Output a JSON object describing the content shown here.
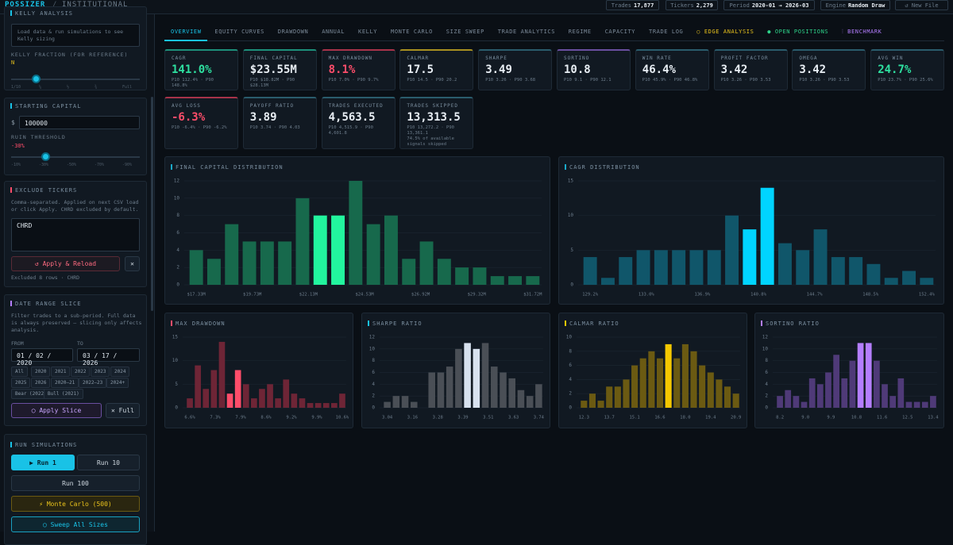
{
  "header": {
    "brand": "POSSIZER",
    "sep": "/",
    "mode": "INSTITUTIONAL",
    "stats": [
      {
        "label": "Trades",
        "value": "17,877"
      },
      {
        "label": "Tickers",
        "value": "2,279"
      },
      {
        "label": "Period",
        "value": "2020-01 → 2026-03"
      },
      {
        "label": "Engine",
        "value": "Random Draw"
      }
    ],
    "new_file": "↺ New File"
  },
  "sidebar": {
    "kelly": {
      "title": "KELLY ANALYSIS",
      "note": "Load data & run simulations to see Kelly sizing",
      "fraction_label": "KELLY FRACTION (FOR REFERENCE)",
      "fraction_value": "N",
      "ticks": [
        "1/10",
        "¼",
        "½",
        "¾",
        "Full"
      ]
    },
    "capital": {
      "title": "STARTING CAPITAL",
      "currency": "$",
      "value": "100000",
      "ruin_label": "RUIN THRESHOLD",
      "ruin_value": "-30%",
      "ticks": [
        "-10%",
        "-30%",
        "-50%",
        "-70%",
        "-90%"
      ]
    },
    "exclude": {
      "title": "EXCLUDE TICKERS",
      "note": "Comma-separated. Applied on next CSV load or click Apply. CHRD excluded by default.",
      "text": "CHRD",
      "apply": "↺ Apply & Reload",
      "clear": "✕",
      "status": "Excluded 8 rows · CHRD"
    },
    "date": {
      "title": "DATE RANGE SLICE",
      "note": "Filter trades to a sub-period. Full data is always preserved — slicing only affects analysis.",
      "from_label": "FROM",
      "to_label": "TO",
      "from": "01 / 02 / 2020",
      "to": "03 / 17 / 2026",
      "chips": [
        "All",
        "2020",
        "2021",
        "2022",
        "2023",
        "2024",
        "2025",
        "2026",
        "2020–21",
        "2022–23",
        "2024+",
        "Bear (2022)",
        "Bull (2021)"
      ],
      "apply": "◯ Apply Slice",
      "full": "✕ Full"
    },
    "run": {
      "title": "RUN SIMULATIONS",
      "run1": "▶ Run 1",
      "run10": "Run 10",
      "run100": "Run 100",
      "mc": "⚡ Monte Carlo (500)",
      "sweep": "◯ Sweep All Sizes"
    }
  },
  "tabs": [
    "OVERVIEW",
    "EQUITY CURVES",
    "DRAWDOWN",
    "ANNUAL",
    "KELLY",
    "MONTE CARLO",
    "SIZE SWEEP",
    "TRADE ANALYTICS",
    "REGIME",
    "CAPACITY",
    "TRADE LOG",
    "○ EDGE ANALYSIS",
    "● OPEN POSITIONS",
    "⫶ BENCHMARK"
  ],
  "tab_colors": [
    "#19c2e6",
    "#7b8a99",
    "#7b8a99",
    "#7b8a99",
    "#7b8a99",
    "#7b8a99",
    "#7b8a99",
    "#7b8a99",
    "#7b8a99",
    "#7b8a99",
    "#7b8a99",
    "#e8c21c",
    "#2ed38a",
    "#b47eff"
  ],
  "cards": [
    {
      "label": "CAGR",
      "value": "141.0%",
      "sub": "P10 112.4% · P90 148.8%",
      "color": "#2ee0a0",
      "accent": "#1d8f7a"
    },
    {
      "label": "FINAL CAPITAL",
      "value": "$23.55M",
      "sub": "P10 $18.82M · P90 $28.13M",
      "color": "#e8eef4",
      "accent": "#1d8f7a"
    },
    {
      "label": "MAX DRAWDOWN",
      "value": "8.1%",
      "sub": "P10 7.0% · P90 9.7%",
      "color": "#ff4d6a",
      "accent": "#a8334a"
    },
    {
      "label": "CALMAR",
      "value": "17.5",
      "sub": "P10 14.5 · P90 20.2",
      "color": "#e8eef4",
      "accent": "#a89020"
    },
    {
      "label": "SHARPE",
      "value": "3.49",
      "sub": "P10 3.26 · P90 3.68",
      "color": "#e8eef4",
      "accent": "#2a5c6c"
    },
    {
      "label": "SORTINO",
      "value": "10.8",
      "sub": "P10 9.1 · P90 12.1",
      "color": "#e8eef4",
      "accent": "#6a4fa0"
    },
    {
      "label": "WIN RATE",
      "value": "46.4%",
      "sub": "P10 45.9% · P90 46.8%",
      "color": "#e8eef4",
      "accent": "#2a5c6c"
    },
    {
      "label": "PROFIT FACTOR",
      "value": "3.42",
      "sub": "P10 3.26 · P90 3.53",
      "color": "#e8eef4",
      "accent": "#2a5c6c"
    },
    {
      "label": "OMEGA",
      "value": "3.42",
      "sub": "P10 3.26 · P90 3.53",
      "color": "#e8eef4",
      "accent": "#2a5c6c"
    },
    {
      "label": "AVG WIN",
      "value": "24.7%",
      "sub": "P10 23.7% · P90 25.6%",
      "color": "#2ee0a0",
      "accent": "#2a5c6c"
    },
    {
      "label": "AVG LOSS",
      "value": "-6.3%",
      "sub": "P10 -6.4% · P90 -6.2%",
      "color": "#ff4d6a",
      "accent": "#a8334a"
    },
    {
      "label": "PAYOFF RATIO",
      "value": "3.89",
      "sub": "P10 3.74 · P90 4.03",
      "color": "#e8eef4",
      "accent": "#2a5c6c"
    },
    {
      "label": "TRADES EXECUTED",
      "value": "4,563.5",
      "sub": "P10 4,515.9 · P90 4,601.8",
      "color": "#e8eef4",
      "accent": "#2a5c6c"
    },
    {
      "label": "TRADES SKIPPED",
      "value": "13,313.5",
      "sub": "P10 13,272.2 · P90 13,361.1",
      "note": "74.5% of available signals skipped",
      "color": "#e8eef4",
      "accent": "#2a5c6c"
    }
  ],
  "chart_data": [
    {
      "type": "bar",
      "title": "FINAL CAPITAL DISTRIBUTION",
      "marker": "#1aa8c8",
      "values": [
        4,
        3,
        7,
        5,
        5,
        5,
        10,
        8,
        8,
        12,
        7,
        8,
        3,
        5,
        3,
        2,
        2,
        1,
        1,
        1
      ],
      "color": "#17694c",
      "highlight_color": "#22f59e",
      "highlight": [
        7,
        8
      ],
      "ylim": [
        0,
        12
      ],
      "yticks": [
        0,
        2,
        4,
        6,
        8,
        10,
        12
      ],
      "x_labels": [
        "$17.33M",
        "$19.73M",
        "$22.13M",
        "$24.53M",
        "$26.92M",
        "$29.32M",
        "$31.72M"
      ]
    },
    {
      "type": "bar",
      "title": "CAGR DISTRIBUTION",
      "marker": "#1aa8c8",
      "values": [
        4,
        1,
        4,
        5,
        5,
        5,
        5,
        5,
        10,
        8,
        14,
        6,
        5,
        8,
        4,
        4,
        3,
        1,
        2,
        1
      ],
      "color": "#10566a",
      "highlight_color": "#00d4ff",
      "highlight": [
        9,
        10
      ],
      "ylim": [
        0,
        15
      ],
      "yticks": [
        0,
        5,
        10,
        15
      ],
      "x_labels": [
        "129.2%",
        "133.0%",
        "136.9%",
        "140.8%",
        "144.7%",
        "148.5%",
        "152.4%"
      ]
    },
    {
      "type": "bar",
      "title": "MAX DRAWDOWN",
      "marker": "#ff4d6a",
      "values": [
        2,
        9,
        4,
        8,
        14,
        3,
        8,
        5,
        2,
        4,
        5,
        2,
        6,
        3,
        2,
        1,
        1,
        1,
        1,
        3
      ],
      "color": "#6e2536",
      "highlight_color": "#ff4d6a",
      "highlight": [
        5,
        6
      ],
      "ylim": [
        0,
        15
      ],
      "yticks": [
        0,
        5,
        10,
        15
      ],
      "x_labels": [
        "6.6%",
        "7.3%",
        "7.9%",
        "8.6%",
        "9.2%",
        "9.9%",
        "10.6%"
      ]
    },
    {
      "type": "bar",
      "title": "SHARPE RATIO",
      "marker": "#19c2e6",
      "values": [
        1,
        2,
        2,
        1,
        0,
        6,
        6,
        7,
        10,
        11,
        10,
        11,
        7,
        6,
        5,
        3,
        2,
        4
      ],
      "color": "#4a4f56",
      "highlight_color": "#d8e2ef",
      "highlight": [
        9,
        10
      ],
      "ylim": [
        0,
        12
      ],
      "yticks": [
        0,
        2,
        4,
        6,
        8,
        10,
        12
      ],
      "x_labels": [
        "3.04",
        "3.16",
        "3.28",
        "3.39",
        "3.51",
        "3.63",
        "3.74"
      ]
    },
    {
      "type": "bar",
      "title": "CALMAR RATIO",
      "marker": "#f5c800",
      "values": [
        1,
        2,
        1,
        3,
        3,
        4,
        6,
        7,
        8,
        7,
        9,
        7,
        9,
        8,
        6,
        5,
        4,
        3,
        2
      ],
      "color": "#6b5a12",
      "highlight_color": "#f5c800",
      "highlight": [
        10
      ],
      "ylim": [
        0,
        10
      ],
      "yticks": [
        0,
        2,
        4,
        6,
        8,
        10
      ],
      "x_labels": [
        "12.3",
        "13.7",
        "15.1",
        "16.6",
        "18.0",
        "19.4",
        "20.9"
      ]
    },
    {
      "type": "bar",
      "title": "SORTINO RATIO",
      "marker": "#b47eff",
      "values": [
        2,
        3,
        2,
        1,
        5,
        4,
        6,
        9,
        5,
        8,
        11,
        11,
        8,
        4,
        2,
        5,
        1,
        1,
        1,
        2
      ],
      "color": "#4f3a78",
      "highlight_color": "#b47eff",
      "highlight": [
        10,
        11
      ],
      "ylim": [
        0,
        12
      ],
      "yticks": [
        0,
        2,
        4,
        6,
        8,
        10,
        12
      ],
      "x_labels": [
        "8.2",
        "9.0",
        "9.9",
        "10.8",
        "11.6",
        "12.5",
        "13.4"
      ]
    }
  ]
}
